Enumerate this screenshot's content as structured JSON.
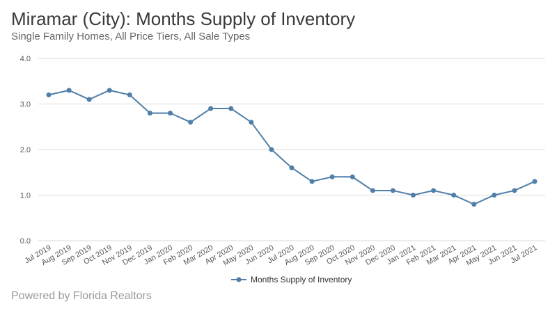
{
  "header": {
    "title": "Miramar (City): Months Supply of Inventory",
    "subtitle": "Single Family Homes, All Price Tiers, All Sale Types"
  },
  "footer": {
    "text": "Powered by Florida Realtors"
  },
  "colors": {
    "series": "#4f7ea8",
    "grid": "#d9d9d9",
    "axis_text": "#555555"
  },
  "chart_data": {
    "type": "line",
    "title": "Miramar (City): Months Supply of Inventory",
    "subtitle": "Single Family Homes, All Price Tiers, All Sale Types",
    "xlabel": "",
    "ylabel": "",
    "ylim": [
      0,
      4
    ],
    "yticks": [
      "0.0",
      "1.0",
      "2.0",
      "3.0",
      "4.0"
    ],
    "grid": true,
    "legend_position": "bottom-center",
    "categories": [
      "Jul 2019",
      "Aug 2019",
      "Sep 2019",
      "Oct 2019",
      "Nov 2019",
      "Dec 2019",
      "Jan 2020",
      "Feb 2020",
      "Mar 2020",
      "Apr 2020",
      "May 2020",
      "Jun 2020",
      "Jul 2020",
      "Aug 2020",
      "Sep 2020",
      "Oct 2020",
      "Nov 2020",
      "Dec 2020",
      "Jan 2021",
      "Feb 2021",
      "Mar 2021",
      "Apr 2021",
      "May 2021",
      "Jun 2021",
      "Jul 2021"
    ],
    "series": [
      {
        "name": "Months Supply of Inventory",
        "values": [
          3.2,
          3.3,
          3.1,
          3.3,
          3.2,
          2.8,
          2.8,
          2.6,
          2.9,
          2.9,
          2.6,
          2.0,
          1.6,
          1.3,
          1.4,
          1.4,
          1.1,
          1.1,
          1.0,
          1.1,
          1.0,
          0.8,
          1.0,
          1.1,
          1.3
        ]
      }
    ]
  }
}
